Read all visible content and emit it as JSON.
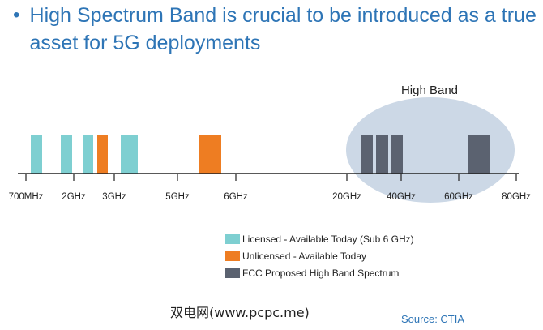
{
  "heading": {
    "bullet": "•",
    "text": "High Spectrum Band is crucial to be introduced as a true asset for 5G deployments"
  },
  "diagram": {
    "region_label": "High Band",
    "tick_labels": [
      "700MHz",
      "2GHz",
      "3GHz",
      "5GHz",
      "6GHz",
      "20GHz",
      "40GHz",
      "60GHz",
      "80GHz"
    ],
    "colors": {
      "licensed": "#7ecfd1",
      "unlicensed": "#ee7d22",
      "high_band": "#5b6270",
      "region": "#ccd8e6",
      "axis": "#222222"
    }
  },
  "legend": {
    "items": [
      {
        "label": "Licensed - Available Today (Sub 6 GHz)",
        "color": "#7ecfd1"
      },
      {
        "label": "Unlicensed - Available Today",
        "color": "#ee7d22"
      },
      {
        "label": "FCC Proposed High Band Spectrum",
        "color": "#5b6270"
      }
    ]
  },
  "watermark": "双电网(www.pcpc.me)",
  "source": "Source: CTIA"
}
